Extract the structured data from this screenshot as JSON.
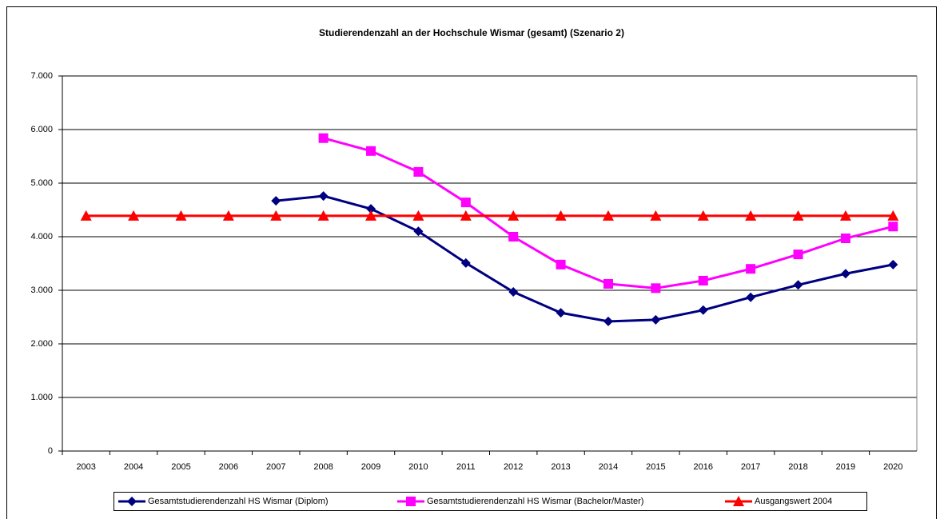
{
  "chart_data": {
    "type": "line",
    "title": "Studierendenzahl an der Hochschule Wismar (gesamt) (Szenario 2)",
    "categories": [
      "2003",
      "2004",
      "2005",
      "2006",
      "2007",
      "2008",
      "2009",
      "2010",
      "2011",
      "2012",
      "2013",
      "2014",
      "2015",
      "2016",
      "2017",
      "2018",
      "2019",
      "2020"
    ],
    "series": [
      {
        "name": "Gesamtstudierendenzahl HS Wismar (Diplom)",
        "color": "#000080",
        "marker": "diamond",
        "values": [
          null,
          null,
          null,
          null,
          4670,
          4760,
          4520,
          4100,
          3510,
          2970,
          2580,
          2420,
          2450,
          2630,
          2870,
          3100,
          3310,
          3480
        ]
      },
      {
        "name": "Gesamtstudierendenzahl HS Wismar (Bachelor/Master)",
        "color": "#ff00ff",
        "marker": "square",
        "values": [
          null,
          null,
          null,
          null,
          null,
          5840,
          5600,
          5210,
          4640,
          4000,
          3480,
          3120,
          3040,
          3180,
          3400,
          3670,
          3970,
          4190
        ]
      },
      {
        "name": "Ausgangswert 2004",
        "color": "#ff0000",
        "marker": "triangle",
        "values": [
          4390,
          4390,
          4390,
          4390,
          4390,
          4390,
          4390,
          4390,
          4390,
          4390,
          4390,
          4390,
          4390,
          4390,
          4390,
          4390,
          4390,
          4390
        ]
      }
    ],
    "ylim": [
      0,
      7000
    ],
    "yticks": [
      0,
      {
        "value": 1000,
        "label": "1.000"
      },
      {
        "value": 2000,
        "label": "2.000"
      },
      {
        "value": 3000,
        "label": "3.000"
      },
      {
        "value": 4000,
        "label": "4.000"
      },
      {
        "value": 5000,
        "label": "5.000"
      },
      {
        "value": 6000,
        "label": "6.000"
      },
      {
        "value": 7000,
        "label": "7.000"
      }
    ],
    "grid": true,
    "legend": "bottom"
  }
}
